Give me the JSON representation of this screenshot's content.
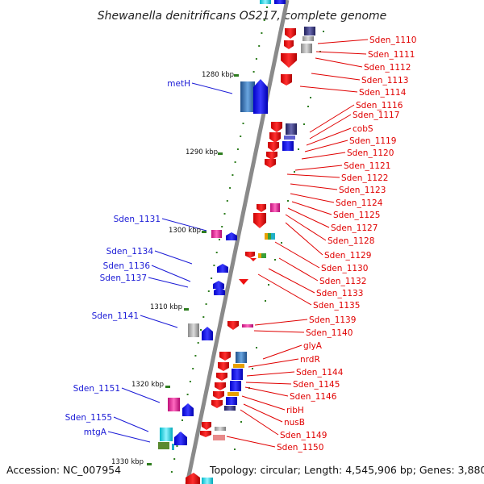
{
  "header": {
    "title": "Shewanella denitrificans OS217, complete genome"
  },
  "footer": {
    "accession": "Accession: NC_007954",
    "topology": "Topology: circular; Length: 4,545,906 bp; Genes: 3,880"
  },
  "scale_labels": [
    "1280 kbp",
    "1290 kbp",
    "1300 kbp",
    "1310 kbp",
    "1320 kbp",
    "1330 kbp"
  ],
  "right_genes": [
    "Sden_1110",
    "Sden_1111",
    "Sden_1112",
    "Sden_1113",
    "Sden_1114",
    "Sden_1116",
    "Sden_1117",
    "cobS",
    "Sden_1119",
    "Sden_1120",
    "Sden_1121",
    "Sden_1122",
    "Sden_1123",
    "Sden_1124",
    "Sden_1125",
    "Sden_1127",
    "Sden_1128",
    "Sden_1129",
    "Sden_1130",
    "Sden_1132",
    "Sden_1133",
    "Sden_1135",
    "Sden_1139",
    "Sden_1140",
    "glyA",
    "nrdR",
    "Sden_1144",
    "Sden_1145",
    "Sden_1146",
    "ribH",
    "nusB",
    "Sden_1149",
    "Sden_1150"
  ],
  "left_genes": [
    "metH",
    "Sden_1131",
    "Sden_1134",
    "Sden_1136",
    "Sden_1137",
    "Sden_1141",
    "Sden_1151",
    "Sden_1155",
    "mtgA"
  ],
  "colors": {
    "backbone": "#8a8a8a",
    "scale_tick": "#2e7d1f",
    "forward_gene": "#1010e0",
    "reverse_gene": "#ee1010",
    "label_red": "#e00000",
    "label_blue": "#1a1ad6"
  }
}
